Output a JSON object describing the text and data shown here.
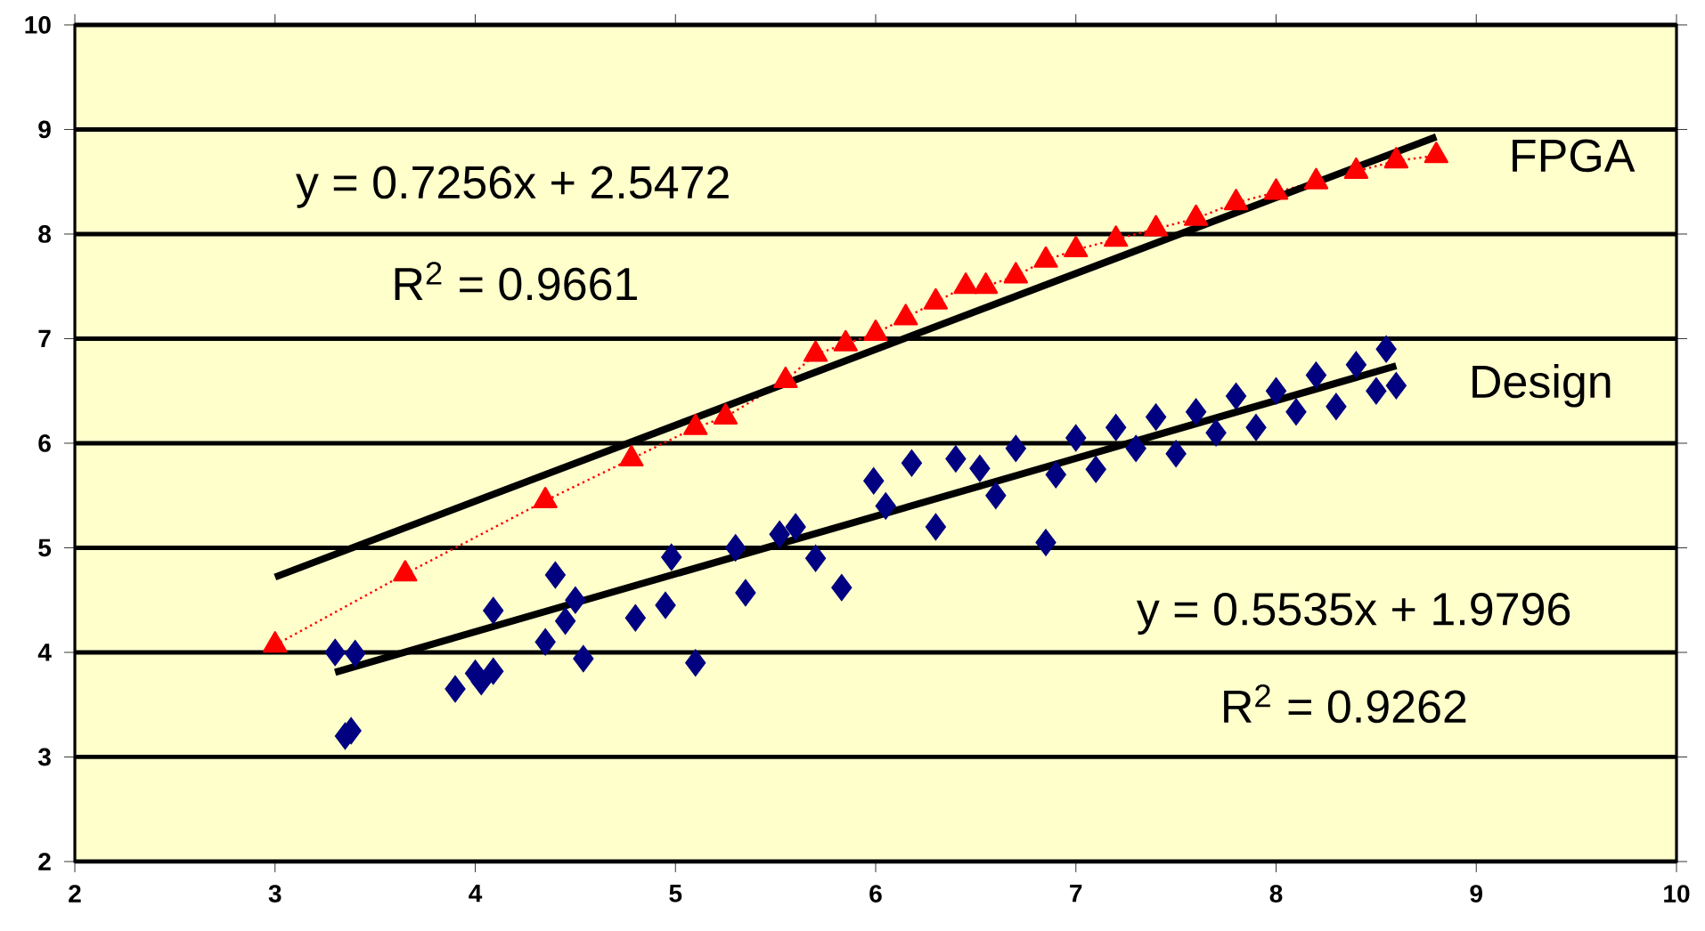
{
  "chart_data": {
    "type": "scatter",
    "xlim": [
      2,
      10
    ],
    "ylim": [
      2,
      10
    ],
    "xticks": [
      2,
      3,
      4,
      5,
      6,
      7,
      8,
      9,
      10
    ],
    "yticks": [
      2,
      3,
      4,
      5,
      6,
      7,
      8,
      9,
      10
    ],
    "grid": "y",
    "annotations": [
      "y = 0.7256x + 2.5472",
      "R$^{2}$ = 0.9661",
      "y = 0.5535x + 1.9796",
      "R$^{2}$ = 0.9262"
    ],
    "series": [
      {
        "name": "FPGA",
        "type": "line",
        "color": "#ff0000",
        "marker": "triangle",
        "line_style": "dotted",
        "x": [
          3.0,
          3.65,
          4.35,
          4.78,
          5.1,
          5.25,
          5.55,
          5.7,
          5.85,
          6.0,
          6.15,
          6.3,
          6.45,
          6.55,
          6.7,
          6.85,
          7.0,
          7.2,
          7.4,
          7.6,
          7.8,
          8.0,
          8.2,
          8.4,
          8.6,
          8.8
        ],
        "values": [
          4.07,
          4.75,
          5.45,
          5.85,
          6.15,
          6.25,
          6.6,
          6.85,
          6.95,
          7.05,
          7.2,
          7.35,
          7.5,
          7.5,
          7.6,
          7.75,
          7.85,
          7.95,
          8.05,
          8.15,
          8.3,
          8.4,
          8.5,
          8.6,
          8.7,
          8.75
        ]
      },
      {
        "name": "Design",
        "color": "#000080",
        "marker": "diamond",
        "x": [
          3.3,
          3.35,
          3.38,
          3.4,
          3.9,
          4.0,
          4.03,
          4.09,
          4.09,
          4.35,
          4.4,
          4.45,
          4.5,
          4.54,
          4.8,
          4.95,
          4.98,
          5.1,
          5.3,
          5.35,
          5.52,
          5.6,
          5.7,
          5.83,
          5.99,
          6.05,
          6.18,
          6.3,
          6.4,
          6.52,
          6.6,
          6.7,
          6.85,
          6.9,
          7.0,
          7.1,
          7.2,
          7.3,
          7.4,
          7.5,
          7.6,
          7.7,
          7.8,
          7.9,
          8.0,
          8.1,
          8.2,
          8.3,
          8.4,
          8.5,
          8.55,
          8.6
        ],
        "values": [
          4.0,
          3.2,
          3.25,
          3.99,
          3.65,
          3.8,
          3.72,
          4.4,
          3.82,
          4.1,
          4.74,
          4.3,
          4.5,
          3.94,
          4.33,
          4.45,
          4.91,
          3.9,
          5.0,
          4.57,
          5.13,
          5.2,
          4.9,
          4.62,
          5.64,
          5.4,
          5.81,
          5.2,
          5.85,
          5.76,
          5.5,
          5.95,
          5.05,
          5.7,
          6.05,
          5.75,
          6.15,
          5.95,
          6.25,
          5.9,
          6.3,
          6.1,
          6.45,
          6.15,
          6.5,
          6.3,
          6.65,
          6.35,
          6.75,
          6.5,
          6.9,
          6.55
        ]
      },
      {
        "type": "line",
        "color": "#000000",
        "marker": "none",
        "line_style": "solid",
        "x": [
          3.0,
          8.8
        ],
        "values": [
          4.72,
          8.93
        ]
      },
      {
        "type": "line",
        "color": "#000000",
        "marker": "none",
        "line_style": "solid",
        "x": [
          3.3,
          8.6
        ],
        "values": [
          3.81,
          6.74
        ]
      }
    ]
  }
}
